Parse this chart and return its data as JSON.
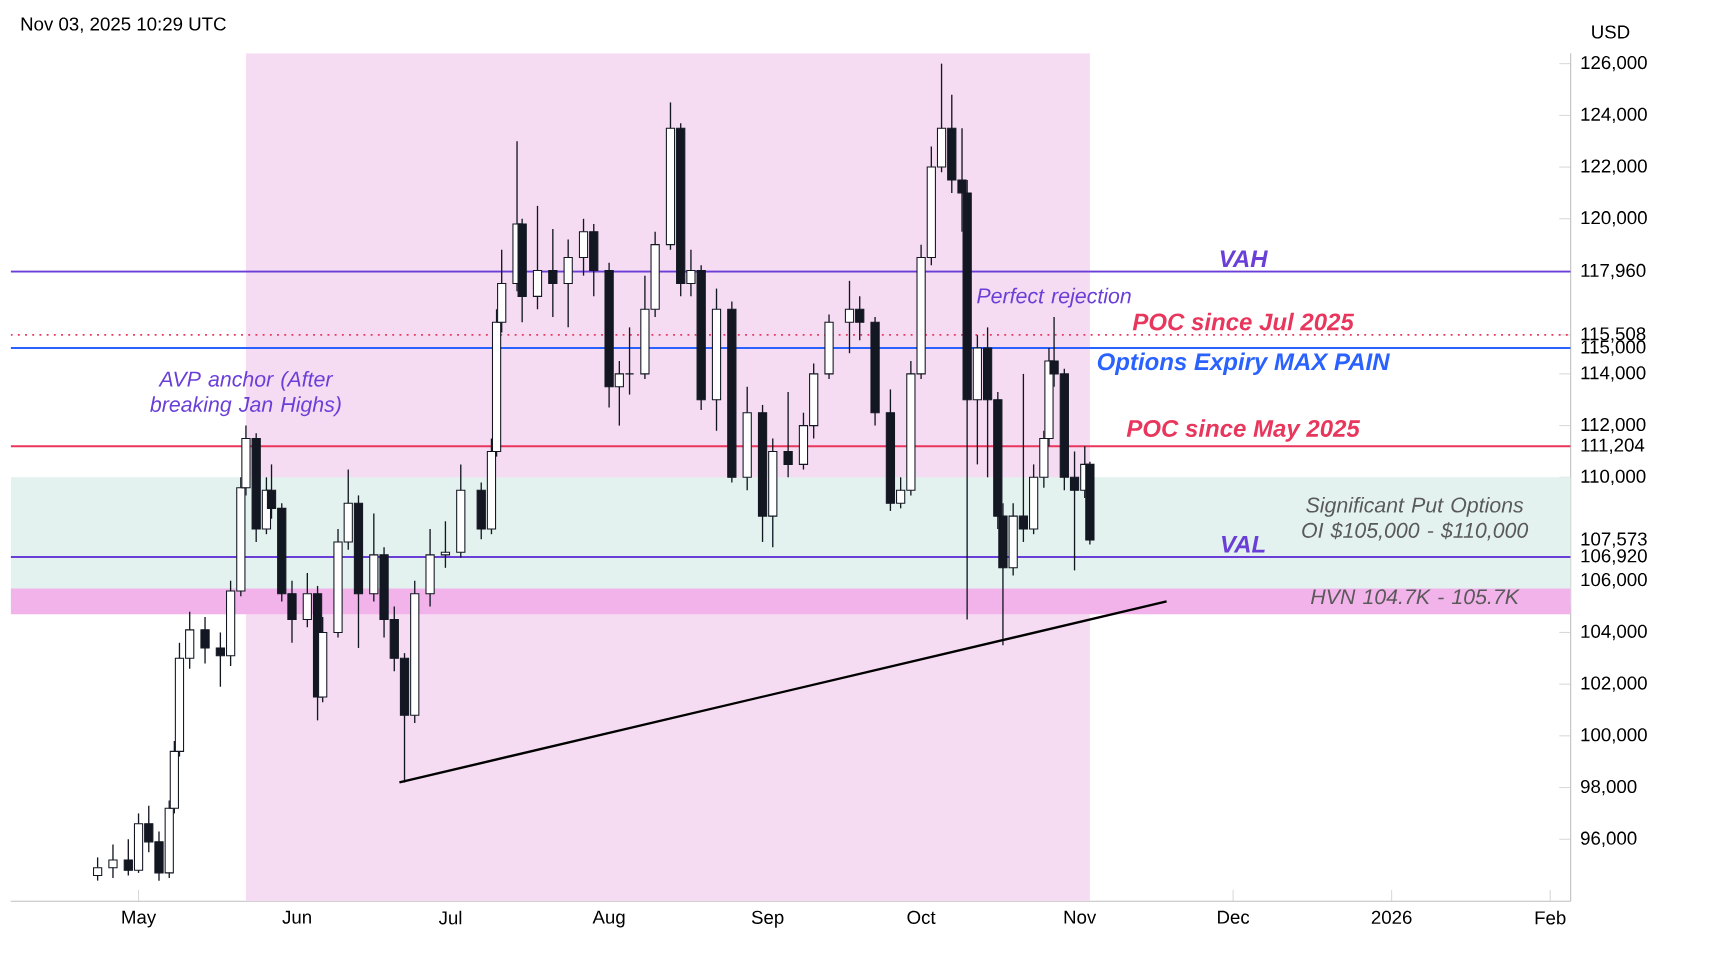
{
  "chart_data": {
    "type": "candlestick",
    "ylabel": "USD",
    "xlim": [
      "2025-04-06",
      "2026-02-05"
    ],
    "ylim": [
      93600,
      126400
    ],
    "xticks": [
      {
        "value": "2025-05-01",
        "label": "May"
      },
      {
        "value": "2025-06-01",
        "label": "Jun"
      },
      {
        "value": "2025-07-01",
        "label": "Jul"
      },
      {
        "value": "2025-08-01",
        "label": "Aug"
      },
      {
        "value": "2025-09-01",
        "label": "Sep"
      },
      {
        "value": "2025-10-01",
        "label": "Oct"
      },
      {
        "value": "2025-11-01",
        "label": "Nov"
      },
      {
        "value": "2025-12-01",
        "label": "Dec"
      },
      {
        "value": "2026-01-01",
        "label": "2026"
      },
      {
        "value": "2026-02-01",
        "label": "Feb"
      }
    ],
    "yticks": [
      {
        "value": 96000,
        "label": "96,000"
      },
      {
        "value": 98000,
        "label": "98,000"
      },
      {
        "value": 100000,
        "label": "100,000"
      },
      {
        "value": 102000,
        "label": "102,000"
      },
      {
        "value": 104000,
        "label": "104,000"
      },
      {
        "value": 106000,
        "label": "106,000"
      },
      {
        "value": 106920,
        "label": "106,920"
      },
      {
        "value": 107573,
        "label": "107,573"
      },
      {
        "value": 110000,
        "label": "110,000"
      },
      {
        "value": 111204,
        "label": "111,204"
      },
      {
        "value": 112000,
        "label": "112,000"
      },
      {
        "value": 114000,
        "label": "114,000"
      },
      {
        "value": 115000,
        "label": "115,000"
      },
      {
        "value": 115508,
        "label": "115,508"
      },
      {
        "value": 117960,
        "label": "117,960"
      },
      {
        "value": 120000,
        "label": "120,000"
      },
      {
        "value": 122000,
        "label": "122,000"
      },
      {
        "value": 124000,
        "label": "124,000"
      },
      {
        "value": 126000,
        "label": "126,000"
      }
    ],
    "bands": [
      {
        "axis": "x",
        "from": "2025-05-22",
        "to": "2025-11-03",
        "color": "#f5dcf2"
      },
      {
        "axis": "y",
        "from": 105000,
        "to": 110000,
        "label": "Significant Put Options OI $105,000 - $110,000",
        "color": "#e3f2ee"
      },
      {
        "axis": "y",
        "from": 104700,
        "to": 105700,
        "label": "HVN 104.7K - 105.7K",
        "color": "#f2b3ea"
      }
    ],
    "ref_lines": [
      {
        "axis": "y",
        "value": 117960,
        "label": "VAH",
        "color": "#6a3fd8"
      },
      {
        "axis": "y",
        "value": 115508,
        "label": "POC since Jul 2025",
        "color": "#e8365d",
        "line_style": "dotted"
      },
      {
        "axis": "y",
        "value": 115000,
        "label": "Options Expiry MAX PAIN",
        "color": "#2962ff"
      },
      {
        "axis": "y",
        "value": 111204,
        "label": "POC since May 2025",
        "color": "#e8365d"
      },
      {
        "axis": "y",
        "value": 106920,
        "label": "VAL",
        "color": "#6a3fd8"
      }
    ],
    "annotations": [
      "Nov 03, 2025 10:29 UTC",
      {
        "text": "AVP anchor (After breaking Jan Highs)",
        "x": "2025-05-22",
        "y": 112000
      },
      {
        "text": "Perfect rejection",
        "x": "2025-10-27",
        "y": 116200
      }
    ],
    "series": [
      {
        "color": "#131722",
        "x": [
          "2025-04-23",
          "2025-04-26",
          "2025-04-29",
          "2025-05-01",
          "2025-05-03",
          "2025-05-05",
          "2025-05-07",
          "2025-05-08",
          "2025-05-09",
          "2025-05-11",
          "2025-05-14",
          "2025-05-17",
          "2025-05-19",
          "2025-05-21",
          "2025-05-22",
          "2025-05-24",
          "2025-05-26",
          "2025-05-27",
          "2025-05-29",
          "2025-05-31",
          "2025-06-03",
          "2025-06-05",
          "2025-06-06",
          "2025-06-09",
          "2025-06-11",
          "2025-06-13",
          "2025-06-16",
          "2025-06-18",
          "2025-06-20",
          "2025-06-22",
          "2025-06-24",
          "2025-06-27",
          "2025-06-30",
          "2025-07-03",
          "2025-07-07",
          "2025-07-09",
          "2025-07-10",
          "2025-07-11",
          "2025-07-14",
          "2025-07-15",
          "2025-07-18",
          "2025-07-21",
          "2025-07-24",
          "2025-07-27",
          "2025-07-29",
          "2025-08-01",
          "2025-08-03",
          "2025-08-05",
          "2025-08-08",
          "2025-08-10",
          "2025-08-13",
          "2025-08-15",
          "2025-08-17",
          "2025-08-19",
          "2025-08-22",
          "2025-08-25",
          "2025-08-28",
          "2025-08-31",
          "2025-09-02",
          "2025-09-05",
          "2025-09-08",
          "2025-09-10",
          "2025-09-13",
          "2025-09-17",
          "2025-09-19",
          "2025-09-22",
          "2025-09-25",
          "2025-09-27",
          "2025-09-29",
          "2025-10-01",
          "2025-10-03",
          "2025-10-05",
          "2025-10-07",
          "2025-10-09",
          "2025-10-10",
          "2025-10-12",
          "2025-10-14",
          "2025-10-16",
          "2025-10-17",
          "2025-10-19",
          "2025-10-21",
          "2025-10-23",
          "2025-10-25",
          "2025-10-26",
          "2025-10-27",
          "2025-10-29",
          "2025-10-31",
          "2025-11-02",
          "2025-11-03"
        ],
        "ohlc": [
          [
            94600,
            95300,
            94400,
            94900
          ],
          [
            94900,
            95800,
            94500,
            95200
          ],
          [
            95200,
            96000,
            94600,
            94800
          ],
          [
            94800,
            97000,
            94700,
            96600
          ],
          [
            96600,
            97300,
            95500,
            95900
          ],
          [
            95900,
            96300,
            94400,
            94700
          ],
          [
            94700,
            97500,
            94500,
            97200
          ],
          [
            97200,
            99800,
            97000,
            99400
          ],
          [
            99400,
            103600,
            99200,
            103000
          ],
          [
            103000,
            104800,
            102600,
            104100
          ],
          [
            104100,
            104600,
            102800,
            103400
          ],
          [
            103400,
            104000,
            101900,
            103100
          ],
          [
            103100,
            106000,
            102700,
            105600
          ],
          [
            105600,
            110000,
            105400,
            109600
          ],
          [
            109600,
            112000,
            109300,
            111500
          ],
          [
            111500,
            111700,
            107500,
            108000
          ],
          [
            108000,
            110000,
            107800,
            109500
          ],
          [
            109500,
            110500,
            108400,
            108800
          ],
          [
            108800,
            109000,
            105200,
            105500
          ],
          [
            105500,
            106000,
            103600,
            104500
          ],
          [
            104500,
            106300,
            104200,
            105500
          ],
          [
            105500,
            105800,
            100600,
            101500
          ],
          [
            101500,
            104600,
            101300,
            104000
          ],
          [
            104000,
            108000,
            103800,
            107500
          ],
          [
            107500,
            110300,
            107200,
            109000
          ],
          [
            109000,
            109300,
            103400,
            105500
          ],
          [
            105500,
            108600,
            105200,
            107000
          ],
          [
            107000,
            107300,
            103800,
            104500
          ],
          [
            104500,
            105000,
            102500,
            103000
          ],
          [
            103000,
            103200,
            98200,
            100800
          ],
          [
            100800,
            106000,
            100500,
            105500
          ],
          [
            105500,
            108000,
            105000,
            107000
          ],
          [
            107000,
            108300,
            106500,
            107100
          ],
          [
            107100,
            110500,
            106900,
            109500
          ],
          [
            109500,
            109800,
            107600,
            108000
          ],
          [
            108000,
            111500,
            107800,
            111000
          ],
          [
            111000,
            116500,
            110800,
            116000
          ],
          [
            116000,
            118800,
            115600,
            117500
          ],
          [
            117500,
            123000,
            117200,
            119800
          ],
          [
            119800,
            120000,
            116000,
            117000
          ],
          [
            117000,
            120500,
            116500,
            118000
          ],
          [
            118000,
            119600,
            116200,
            117500
          ],
          [
            117500,
            119200,
            115800,
            118500
          ],
          [
            118500,
            120000,
            117800,
            119500
          ],
          [
            119500,
            119800,
            117000,
            118000
          ],
          [
            118000,
            118300,
            112700,
            113500
          ],
          [
            113500,
            114500,
            112000,
            114000
          ],
          [
            114000,
            115800,
            113200,
            114000
          ],
          [
            114000,
            117800,
            113800,
            116500
          ],
          [
            116500,
            119500,
            116200,
            119000
          ],
          [
            119000,
            124500,
            118800,
            123500
          ],
          [
            123500,
            123700,
            117000,
            117500
          ],
          [
            117500,
            118800,
            117000,
            118000
          ],
          [
            118000,
            118200,
            112600,
            113000
          ],
          [
            113000,
            117300,
            111800,
            116500
          ],
          [
            116500,
            116800,
            109800,
            110000
          ],
          [
            110000,
            113500,
            109500,
            112500
          ],
          [
            112500,
            112800,
            107500,
            108500
          ],
          [
            108500,
            111500,
            107300,
            111000
          ],
          [
            111000,
            113300,
            110000,
            110500
          ],
          [
            110500,
            112500,
            110300,
            112000
          ],
          [
            112000,
            114400,
            111500,
            114000
          ],
          [
            114000,
            116300,
            113800,
            116000
          ],
          [
            116000,
            117600,
            114800,
            116500
          ],
          [
            116500,
            117000,
            115300,
            116000
          ],
          [
            116000,
            116200,
            112000,
            112500
          ],
          [
            112500,
            113400,
            108700,
            109000
          ],
          [
            109000,
            110000,
            108800,
            109500
          ],
          [
            109500,
            114500,
            109300,
            114000
          ],
          [
            114000,
            119000,
            113800,
            118500
          ],
          [
            118500,
            122800,
            118200,
            122000
          ],
          [
            122000,
            126000,
            121800,
            123500
          ],
          [
            123500,
            124800,
            121000,
            121500
          ],
          [
            121500,
            123500,
            119500,
            121000
          ],
          [
            121000,
            121500,
            104500,
            113000
          ],
          [
            113000,
            115500,
            110500,
            115000
          ],
          [
            115000,
            115800,
            110000,
            113000
          ],
          [
            113000,
            113300,
            108000,
            108500
          ],
          [
            108500,
            109000,
            103500,
            106500
          ],
          [
            106500,
            109000,
            106200,
            108500
          ],
          [
            108500,
            114000,
            107500,
            108000
          ],
          [
            108000,
            110500,
            107800,
            110000
          ],
          [
            110000,
            111800,
            109600,
            111500
          ],
          [
            111500,
            115000,
            111200,
            114500
          ],
          [
            114500,
            116200,
            113500,
            114000
          ],
          [
            114000,
            114200,
            109500,
            110000
          ],
          [
            110000,
            111000,
            106400,
            109500
          ],
          [
            109500,
            111200,
            109200,
            110500
          ],
          [
            110500,
            110600,
            107400,
            107573
          ]
        ]
      },
      {
        "type": "line",
        "color": "#000000",
        "x": [
          "2025-06-21",
          "2025-11-18"
        ],
        "values": [
          98200,
          105200
        ]
      }
    ]
  }
}
